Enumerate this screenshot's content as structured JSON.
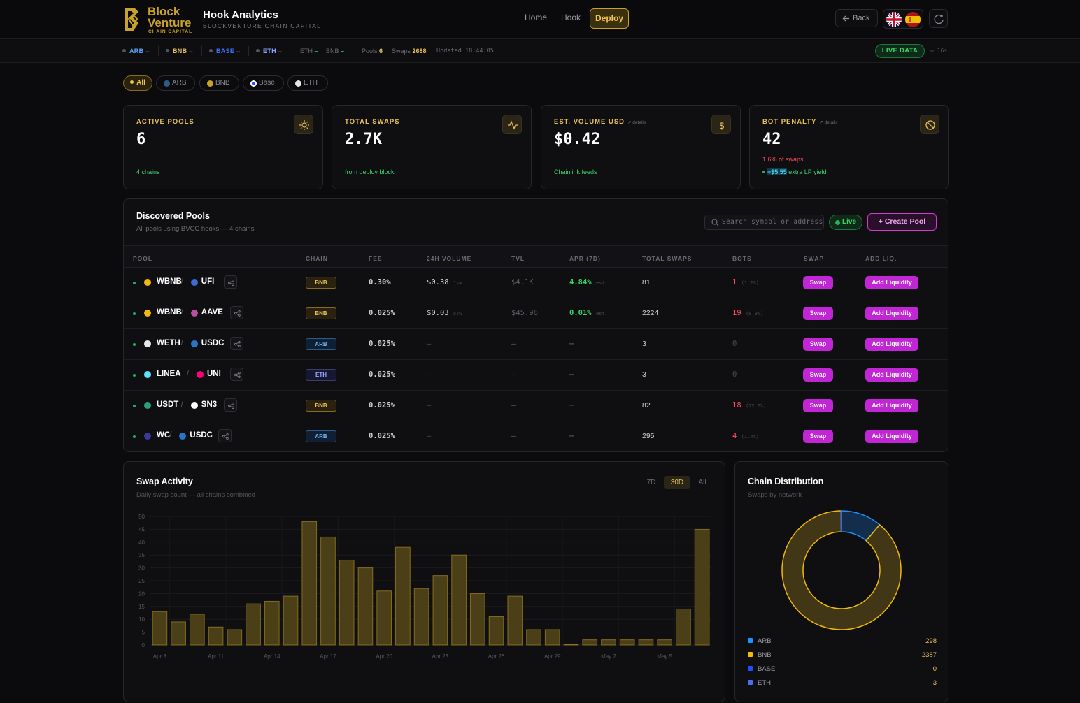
{
  "brand": {
    "logo_line1": "Block",
    "logo_line2": "Venture",
    "logo_line3": "CHAIN CAPITAL",
    "app_title": "Hook Analytics",
    "app_subtitle": "BLOCKVENTURE CHAIN CAPITAL"
  },
  "nav": {
    "home": "Home",
    "hook": "Hook",
    "deploy": "Deploy",
    "back": "Back"
  },
  "ticker": {
    "arb": "ARB",
    "bnb": "BNB",
    "base": "BASE",
    "eth": "ETH",
    "dash": "–",
    "eth_g": "ETH",
    "bnb_g": "BNB",
    "pools_label": "Pools",
    "pools_val": "6",
    "swaps_label": "Swaps",
    "swaps_val": "2688",
    "updated_label": "Updated",
    "updated_val": "18:44:05",
    "live_data": "LIVE DATA",
    "refresh": "↻ 16s"
  },
  "filters": [
    "All",
    "ARB",
    "BNB",
    "Base",
    "ETH"
  ],
  "cards": [
    {
      "label": "ACTIVE POOLS",
      "value": "6",
      "sub": "4 chains",
      "icon": "sun-icon"
    },
    {
      "label": "TOTAL SWAPS",
      "value": "2.7K",
      "sub": "from deploy block",
      "icon": "activity-icon"
    },
    {
      "label": "EST. VOLUME USD",
      "details": "↗ details",
      "value": "$0.42",
      "sub": "Chainlink feeds",
      "icon": "dollar-icon"
    },
    {
      "label": "BOT PENALTY",
      "details": "↗ details",
      "value": "42",
      "sub_red": "1.6% of swaps",
      "sub_pre": "+$5.55",
      "sub_post": "extra LP yield",
      "icon": "ban-icon"
    }
  ],
  "pools": {
    "title": "Discovered Pools",
    "subtitle": "All pools using BVCC hooks — 4 chains",
    "search_placeholder": "Search symbol or address",
    "live": "Live",
    "create": "+ Create Pool",
    "headers": [
      "POOL",
      "CHAIN",
      "FEE",
      "24H VOLUME",
      "TVL",
      "APR (7D)",
      "TOTAL SWAPS",
      "BOTS",
      "SWAP",
      "ADD LIQ."
    ],
    "rows": [
      {
        "t0": "WBNB",
        "t1": "UFI",
        "chain": "BNB",
        "chain_cls": "bnb",
        "fee": "0.30%",
        "vol": "$0.38",
        "vol_sub": "1sw",
        "tvl": "$4.1K",
        "apr": "4.84%",
        "apr_sub": "est.",
        "swaps": "81",
        "bots": "1",
        "bots_sub": "(1.2%)",
        "c0": "#f0b90b",
        "c1": "#3b6dd9",
        "swap": "Swap",
        "add": "Add Liquidity"
      },
      {
        "t0": "WBNB",
        "t1": "AAVE",
        "chain": "BNB",
        "chain_cls": "bnb",
        "fee": "0.025%",
        "vol": "$0.03",
        "vol_sub": "5sw",
        "tvl": "$45.96",
        "apr": "0.01%",
        "apr_sub": "est.",
        "swaps": "2224",
        "bots": "19",
        "bots_sub": "(0.9%)",
        "c0": "#f0b90b",
        "c1": "#b6509e",
        "swap": "Swap",
        "add": "Add Liquidity"
      },
      {
        "t0": "WETH",
        "t1": "USDC",
        "chain": "ARB",
        "chain_cls": "arb",
        "fee": "0.025%",
        "vol": "–",
        "vol_sub": "",
        "tvl": "–",
        "apr": "–",
        "apr_sub": "",
        "swaps": "3",
        "bots": "0",
        "bots_sub": "",
        "c0": "#e6e6e6",
        "c1": "#2775ca",
        "swap": "Swap",
        "add": "Add Liquidity"
      },
      {
        "t0": "LINEA",
        "t1": "UNI",
        "chain": "ETH",
        "chain_cls": "eth",
        "fee": "0.025%",
        "vol": "–",
        "vol_sub": "",
        "tvl": "–",
        "apr": "–",
        "apr_sub": "",
        "swaps": "3",
        "bots": "0",
        "bots_sub": "",
        "c0": "#61dfff",
        "c1": "#ff007a",
        "swap": "Swap",
        "add": "Add Liquidity"
      },
      {
        "t0": "USDT",
        "t1": "SN3",
        "chain": "BNB",
        "chain_cls": "bnb",
        "fee": "0.025%",
        "vol": "–",
        "vol_sub": "",
        "tvl": "–",
        "apr": "–",
        "apr_sub": "",
        "swaps": "82",
        "bots": "18",
        "bots_sub": "(22.0%)",
        "c0": "#26a17b",
        "c1": "#ffffff",
        "swap": "Swap",
        "add": "Add Liquidity"
      },
      {
        "t0": "WC",
        "t1": "USDC",
        "chain": "ARB",
        "chain_cls": "arb",
        "fee": "0.025%",
        "vol": "–",
        "vol_sub": "",
        "tvl": "–",
        "apr": "–",
        "apr_sub": "",
        "swaps": "295",
        "bots": "4",
        "bots_sub": "(1.4%)",
        "c0": "#3a3a9a",
        "c1": "#2775ca",
        "swap": "Swap",
        "add": "Add Liquidity"
      }
    ]
  },
  "swap_activity": {
    "title": "Swap Activity",
    "subtitle": "Daily swap count — all chains combined",
    "ranges": [
      "7D",
      "30D",
      "All"
    ],
    "active_range": "30D",
    "chart_data": {
      "type": "bar",
      "ylim": [
        0,
        50
      ],
      "yticks": [
        0,
        5,
        10,
        15,
        20,
        25,
        30,
        35,
        40,
        45,
        50
      ],
      "xtick_labels": [
        "Apr 8",
        "Apr 11",
        "Apr 14",
        "Apr 17",
        "Apr 20",
        "Apr 23",
        "Apr 26",
        "Apr 29",
        "May 2",
        "May 5"
      ],
      "categories": [
        "Apr 8",
        "Apr 9",
        "Apr 10",
        "Apr 11",
        "Apr 12",
        "Apr 13",
        "Apr 14",
        "Apr 15",
        "Apr 16",
        "Apr 17",
        "Apr 18",
        "Apr 19",
        "Apr 20",
        "Apr 21",
        "Apr 22",
        "Apr 23",
        "Apr 24",
        "Apr 25",
        "Apr 26",
        "Apr 27",
        "Apr 28",
        "Apr 29",
        "Apr 30",
        "May 1",
        "May 2",
        "May 3",
        "May 4",
        "May 5",
        "May 6",
        "May 7"
      ],
      "values": [
        13,
        9,
        12,
        7,
        6,
        16,
        17,
        19,
        48,
        42,
        33,
        30,
        21,
        38,
        22,
        27,
        35,
        20,
        11,
        19,
        6,
        6,
        0,
        2,
        2,
        2,
        2,
        2,
        14,
        45
      ],
      "color": "#c9a227"
    }
  },
  "chain_distribution": {
    "title": "Chain Distribution",
    "subtitle": "Swaps by network",
    "chart_data": {
      "type": "pie",
      "labels": [
        "ARB",
        "BNB",
        "BASE",
        "ETH"
      ],
      "values": [
        298,
        2387,
        0,
        3
      ],
      "colors": [
        "#1e90ff",
        "#f0b90b",
        "#1f4fff",
        "#4a6cf7"
      ]
    },
    "legend": [
      {
        "label": "ARB",
        "value": "298",
        "color": "#1e90ff"
      },
      {
        "label": "BNB",
        "value": "2387",
        "color": "#f0b90b"
      },
      {
        "label": "BASE",
        "value": "0",
        "color": "#1f4fff"
      },
      {
        "label": "ETH",
        "value": "3",
        "color": "#4a6cf7"
      }
    ]
  }
}
